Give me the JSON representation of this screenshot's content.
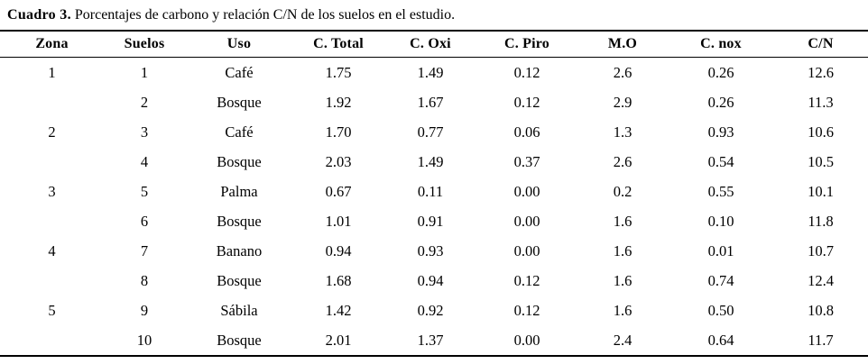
{
  "caption": {
    "label": "Cuadro 3.",
    "text": " Porcentajes de carbono y relación C/N de los suelos en el estudio."
  },
  "colors": {
    "background": "#ffffff",
    "text": "#000000",
    "rule": "#000000"
  },
  "table": {
    "headers": [
      "Zona",
      "Suelos",
      "Uso",
      "C. Total",
      "C. Oxi",
      "C. Piro",
      "M.O",
      "C. nox",
      "C/N"
    ],
    "rows": [
      [
        "1",
        "1",
        "Café",
        "1.75",
        "1.49",
        "0.12",
        "2.6",
        "0.26",
        "12.6"
      ],
      [
        "",
        "2",
        "Bosque",
        "1.92",
        "1.67",
        "0.12",
        "2.9",
        "0.26",
        "11.3"
      ],
      [
        "2",
        "3",
        "Café",
        "1.70",
        "0.77",
        "0.06",
        "1.3",
        "0.93",
        "10.6"
      ],
      [
        "",
        "4",
        "Bosque",
        "2.03",
        "1.49",
        "0.37",
        "2.6",
        "0.54",
        "10.5"
      ],
      [
        "3",
        "5",
        "Palma",
        "0.67",
        "0.11",
        "0.00",
        "0.2",
        "0.55",
        "10.1"
      ],
      [
        "",
        "6",
        "Bosque",
        "1.01",
        "0.91",
        "0.00",
        "1.6",
        "0.10",
        "11.8"
      ],
      [
        "4",
        "7",
        "Banano",
        "0.94",
        "0.93",
        "0.00",
        "1.6",
        "0.01",
        "10.7"
      ],
      [
        "",
        "8",
        "Bosque",
        "1.68",
        "0.94",
        "0.12",
        "1.6",
        "0.74",
        "12.4"
      ],
      [
        "5",
        "9",
        "Sábila",
        "1.42",
        "0.92",
        "0.12",
        "1.6",
        "0.50",
        "10.8"
      ],
      [
        "",
        "10",
        "Bosque",
        "2.01",
        "1.37",
        "0.00",
        "2.4",
        "0.64",
        "11.7"
      ]
    ]
  }
}
